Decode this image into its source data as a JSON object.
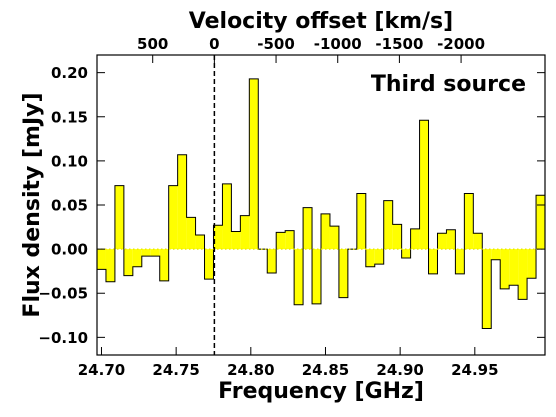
{
  "chart_data": {
    "type": "step-histogram",
    "annotation": "Third source",
    "xlabel": "Frequency [GHz]",
    "ylabel": "Flux density [mJy]",
    "top_xlabel": "Velocity offset [km/s]",
    "xlim": [
      24.697,
      24.997
    ],
    "ylim": [
      -0.12,
      0.22
    ],
    "x_ticks": [
      24.7,
      24.75,
      24.8,
      24.85,
      24.9,
      24.95
    ],
    "x_tick_labels": [
      "24.70",
      "24.75",
      "24.80",
      "24.85",
      "24.90",
      "24.95"
    ],
    "y_ticks": [
      -0.1,
      -0.05,
      0.0,
      0.05,
      0.1,
      0.15,
      0.2
    ],
    "y_tick_labels": [
      "−0.10",
      "−0.05",
      "0.00",
      "0.05",
      "0.10",
      "0.15",
      "0.20"
    ],
    "top_ticks": [
      {
        "label": "500",
        "freq": 24.7343
      },
      {
        "label": "0",
        "freq": 24.7756
      },
      {
        "label": "-500",
        "freq": 24.8169
      },
      {
        "label": "-1000",
        "freq": 24.8582
      },
      {
        "label": "-1500",
        "freq": 24.8995
      },
      {
        "label": "-2000",
        "freq": 24.9408
      }
    ],
    "zero_velocity_freq": 24.7756,
    "fill_color": "#ffff00",
    "bins": {
      "start": 24.697,
      "width": 0.006,
      "values": [
        -0.023,
        -0.037,
        0.072,
        -0.03,
        -0.02,
        -0.008,
        -0.008,
        -0.036,
        0.072,
        0.107,
        0.036,
        0.016,
        -0.034,
        0.027,
        0.074,
        0.02,
        0.038,
        0.193,
        0.0,
        -0.027,
        0.019,
        0.021,
        -0.063,
        0.047,
        -0.062,
        0.04,
        0.026,
        -0.055,
        0.0,
        0.063,
        -0.02,
        -0.017,
        0.055,
        0.028,
        -0.01,
        0.023,
        0.146,
        -0.028,
        0.018,
        0.022,
        -0.028,
        0.063,
        0.018,
        -0.09,
        -0.012,
        -0.045,
        -0.041,
        -0.057,
        -0.033,
        0.061
      ]
    }
  }
}
